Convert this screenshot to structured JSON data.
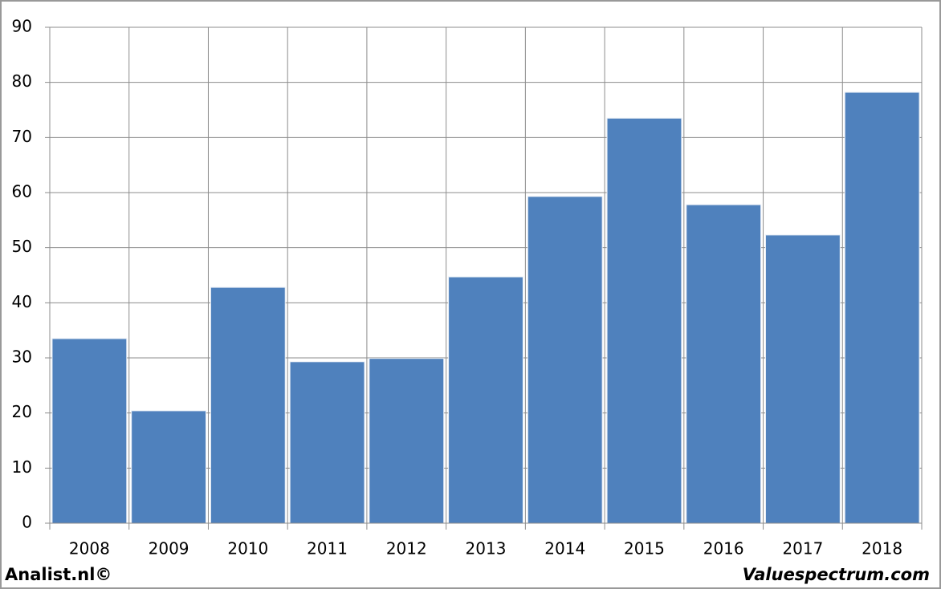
{
  "chart_data": {
    "type": "bar",
    "categories": [
      "2008",
      "2009",
      "2010",
      "2011",
      "2012",
      "2013",
      "2014",
      "2015",
      "2016",
      "2017",
      "2018"
    ],
    "values": [
      33.5,
      20.4,
      42.8,
      29.3,
      29.9,
      44.7,
      59.3,
      73.5,
      57.8,
      52.3,
      78.2
    ],
    "color": "#4f81bd",
    "ylim": [
      0,
      90
    ],
    "yticks": [
      0,
      10,
      20,
      30,
      40,
      50,
      60,
      70,
      80,
      90
    ],
    "grid": true,
    "footer_left": "Analist.nl©",
    "footer_right": "Valuespectrum.com"
  }
}
